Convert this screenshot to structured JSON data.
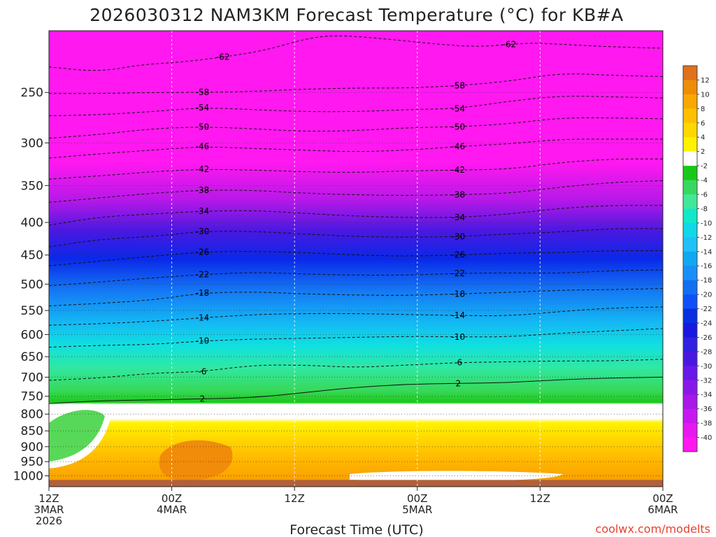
{
  "chart_data": {
    "type": "heatmap",
    "title": "2026030312 NAM3KM Forecast Temperature (°C) for KB#A",
    "xlabel": "Forecast Time (UTC)",
    "ylabel": "",
    "credit": "coolwx.com/modelts",
    "y_scale": "log",
    "y_inverted": true,
    "ylim": [
      1040,
      200
    ],
    "xlim": [
      0,
      60
    ],
    "grid": true,
    "legend": "colorbar-right",
    "y_ticks": [
      {
        "p": 250,
        "label": "250"
      },
      {
        "p": 300,
        "label": "300"
      },
      {
        "p": 350,
        "label": "350"
      },
      {
        "p": 400,
        "label": "400"
      },
      {
        "p": 450,
        "label": "450"
      },
      {
        "p": 500,
        "label": "500"
      },
      {
        "p": 550,
        "label": "550"
      },
      {
        "p": 600,
        "label": "600"
      },
      {
        "p": 650,
        "label": "650"
      },
      {
        "p": 700,
        "label": "700"
      },
      {
        "p": 750,
        "label": "750"
      },
      {
        "p": 800,
        "label": "800"
      },
      {
        "p": 850,
        "label": "850"
      },
      {
        "p": 900,
        "label": "900"
      },
      {
        "p": 950,
        "label": "950"
      },
      {
        "p": 1000,
        "label": "1000"
      }
    ],
    "x_ticks": [
      {
        "h": 0,
        "lines": [
          "12Z",
          "3MAR",
          "2026"
        ]
      },
      {
        "h": 12,
        "lines": [
          "00Z",
          "4MAR"
        ]
      },
      {
        "h": 24,
        "lines": [
          "12Z"
        ]
      },
      {
        "h": 36,
        "lines": [
          "00Z",
          "5MAR"
        ]
      },
      {
        "h": 48,
        "lines": [
          "12Z"
        ]
      },
      {
        "h": 60,
        "lines": [
          "00Z",
          "6MAR"
        ]
      }
    ],
    "colorbar": {
      "labels": [
        "12",
        "10",
        "8",
        "6",
        "4",
        "2",
        "-2",
        "-4",
        "-6",
        "-8",
        "-10",
        "-12",
        "-14",
        "-16",
        "-18",
        "-20",
        "-22",
        "-24",
        "-26",
        "-28",
        "-30",
        "-32",
        "-34",
        "-36",
        "-38",
        "-40"
      ],
      "colors": [
        "#e0701a",
        "#f08c0a",
        "#f8a800",
        "#ffc000",
        "#ffd800",
        "#fff200",
        "#ffffff",
        "#18c818",
        "#38d860",
        "#40e898",
        "#10e8c8",
        "#10d8e8",
        "#20c0f8",
        "#10a8f0",
        "#1890f8",
        "#1070f0",
        "#1050f8",
        "#0830e0",
        "#1818e0",
        "#3020e0",
        "#4818e0",
        "#6818e8",
        "#8818e8",
        "#a818e8",
        "#c818f0",
        "#e818f0",
        "#ff18f0"
      ]
    },
    "ground": {
      "from_p": 1015,
      "color": "#b0603a"
    },
    "series": [
      {
        "label": "-62",
        "points": [
          [
            0,
            228
          ],
          [
            5,
            232
          ],
          [
            9,
            226
          ],
          [
            13,
            224
          ],
          [
            17,
            220
          ],
          [
            21,
            215
          ],
          [
            25,
            206
          ],
          [
            28,
            203
          ],
          [
            33,
            206
          ],
          [
            38,
            210
          ],
          [
            42,
            212
          ],
          [
            45,
            210
          ],
          [
            47.5,
            209
          ],
          [
            50,
            210
          ],
          [
            55,
            212
          ],
          [
            60,
            213
          ]
        ]
      },
      {
        "label": "-58",
        "points": [
          [
            0,
            251
          ],
          [
            5,
            251
          ],
          [
            10,
            250
          ],
          [
            15,
            250
          ],
          [
            20,
            249
          ],
          [
            25,
            247
          ],
          [
            30,
            246
          ],
          [
            35,
            246
          ],
          [
            40,
            244
          ],
          [
            45,
            240
          ],
          [
            50,
            233
          ],
          [
            55,
            235
          ],
          [
            60,
            236
          ]
        ]
      },
      {
        "label": "-54",
        "points": [
          [
            0,
            272
          ],
          [
            5,
            271
          ],
          [
            10,
            268
          ],
          [
            15,
            264
          ],
          [
            20,
            266
          ],
          [
            25,
            268
          ],
          [
            30,
            268
          ],
          [
            35,
            266
          ],
          [
            40,
            265
          ],
          [
            45,
            258
          ],
          [
            50,
            253
          ],
          [
            55,
            254
          ],
          [
            60,
            255
          ]
        ]
      },
      {
        "label": "-50",
        "points": [
          [
            0,
            295
          ],
          [
            5,
            291
          ],
          [
            10,
            285
          ],
          [
            15,
            283
          ],
          [
            20,
            285
          ],
          [
            25,
            288
          ],
          [
            30,
            287
          ],
          [
            35,
            284
          ],
          [
            40,
            283
          ],
          [
            45,
            280
          ],
          [
            50,
            274
          ],
          [
            55,
            274
          ],
          [
            60,
            275
          ]
        ]
      },
      {
        "label": "-46",
        "points": [
          [
            0,
            317
          ],
          [
            5,
            312
          ],
          [
            10,
            308
          ],
          [
            15,
            304
          ],
          [
            20,
            306
          ],
          [
            25,
            308
          ],
          [
            30,
            310
          ],
          [
            35,
            308
          ],
          [
            40,
            304
          ],
          [
            45,
            301
          ],
          [
            50,
            296
          ],
          [
            55,
            296
          ],
          [
            60,
            296
          ]
        ]
      },
      {
        "label": "-42",
        "points": [
          [
            0,
            342
          ],
          [
            5,
            338
          ],
          [
            10,
            333
          ],
          [
            15,
            330
          ],
          [
            20,
            331
          ],
          [
            25,
            333
          ],
          [
            30,
            334
          ],
          [
            35,
            332
          ],
          [
            40,
            331
          ],
          [
            45,
            330
          ],
          [
            50,
            322
          ],
          [
            55,
            318
          ],
          [
            60,
            318
          ]
        ]
      },
      {
        "label": "-38",
        "points": [
          [
            0,
            372
          ],
          [
            5,
            366
          ],
          [
            10,
            360
          ],
          [
            15,
            356
          ],
          [
            20,
            356
          ],
          [
            25,
            360
          ],
          [
            30,
            362
          ],
          [
            35,
            363
          ],
          [
            40,
            362
          ],
          [
            45,
            360
          ],
          [
            50,
            352
          ],
          [
            55,
            346
          ],
          [
            60,
            344
          ]
        ]
      },
      {
        "label": "-34",
        "points": [
          [
            0,
            404
          ],
          [
            5,
            392
          ],
          [
            10,
            388
          ],
          [
            15,
            384
          ],
          [
            20,
            383
          ],
          [
            25,
            387
          ],
          [
            30,
            391
          ],
          [
            35,
            393
          ],
          [
            40,
            393
          ],
          [
            45,
            388
          ],
          [
            50,
            380
          ],
          [
            55,
            376
          ],
          [
            60,
            376
          ]
        ]
      },
      {
        "label": "-30",
        "points": [
          [
            0,
            437
          ],
          [
            5,
            425
          ],
          [
            10,
            421
          ],
          [
            15,
            413
          ],
          [
            20,
            413
          ],
          [
            25,
            417
          ],
          [
            30,
            421
          ],
          [
            35,
            422
          ],
          [
            40,
            421
          ],
          [
            45,
            417
          ],
          [
            50,
            414
          ],
          [
            55,
            409
          ],
          [
            60,
            409
          ]
        ]
      },
      {
        "label": "-26",
        "points": [
          [
            0,
            468
          ],
          [
            5,
            460
          ],
          [
            10,
            452
          ],
          [
            15,
            445
          ],
          [
            20,
            444
          ],
          [
            25,
            446
          ],
          [
            30,
            450
          ],
          [
            35,
            452
          ],
          [
            40,
            450
          ],
          [
            45,
            447
          ],
          [
            50,
            446
          ],
          [
            55,
            443
          ],
          [
            60,
            443
          ]
        ]
      },
      {
        "label": "-22",
        "points": [
          [
            0,
            503
          ],
          [
            5,
            496
          ],
          [
            10,
            489
          ],
          [
            15,
            483
          ],
          [
            20,
            479
          ],
          [
            25,
            482
          ],
          [
            30,
            484
          ],
          [
            35,
            484
          ],
          [
            40,
            481
          ],
          [
            45,
            480
          ],
          [
            50,
            481
          ],
          [
            55,
            476
          ],
          [
            60,
            475
          ]
        ]
      },
      {
        "label": "-18",
        "points": [
          [
            0,
            541
          ],
          [
            5,
            536
          ],
          [
            10,
            530
          ],
          [
            15,
            516
          ],
          [
            20,
            514
          ],
          [
            25,
            518
          ],
          [
            30,
            520
          ],
          [
            35,
            521
          ],
          [
            40,
            518
          ],
          [
            45,
            515
          ],
          [
            50,
            511
          ],
          [
            55,
            510
          ],
          [
            60,
            508
          ]
        ]
      },
      {
        "label": "-14",
        "points": [
          [
            0,
            580
          ],
          [
            5,
            577
          ],
          [
            10,
            572
          ],
          [
            15,
            565
          ],
          [
            20,
            558
          ],
          [
            25,
            556
          ],
          [
            30,
            556
          ],
          [
            35,
            558
          ],
          [
            40,
            560
          ],
          [
            45,
            561
          ],
          [
            50,
            552
          ],
          [
            55,
            545
          ],
          [
            60,
            543
          ]
        ]
      },
      {
        "label": "-10",
        "points": [
          [
            0,
            628
          ],
          [
            5,
            624
          ],
          [
            10,
            622
          ],
          [
            15,
            614
          ],
          [
            20,
            610
          ],
          [
            25,
            608
          ],
          [
            30,
            606
          ],
          [
            35,
            604
          ],
          [
            40,
            605
          ],
          [
            45,
            605
          ],
          [
            50,
            597
          ],
          [
            55,
            592
          ],
          [
            60,
            587
          ]
        ]
      },
      {
        "label": "-6",
        "points": [
          [
            0,
            708
          ],
          [
            5,
            702
          ],
          [
            10,
            690
          ],
          [
            15,
            686
          ],
          [
            20,
            670
          ],
          [
            25,
            670
          ],
          [
            30,
            676
          ],
          [
            35,
            670
          ],
          [
            40,
            664
          ],
          [
            45,
            662
          ],
          [
            50,
            660
          ],
          [
            55,
            660
          ],
          [
            60,
            656
          ]
        ]
      },
      {
        "label": "2",
        "points": [
          [
            0,
            770
          ],
          [
            5,
            762
          ],
          [
            10,
            760
          ],
          [
            15,
            757
          ],
          [
            20,
            754
          ],
          [
            25,
            740
          ],
          [
            30,
            726
          ],
          [
            35,
            718
          ],
          [
            40,
            716
          ],
          [
            45,
            714
          ],
          [
            50,
            706
          ],
          [
            55,
            702
          ],
          [
            60,
            700
          ]
        ]
      }
    ]
  }
}
